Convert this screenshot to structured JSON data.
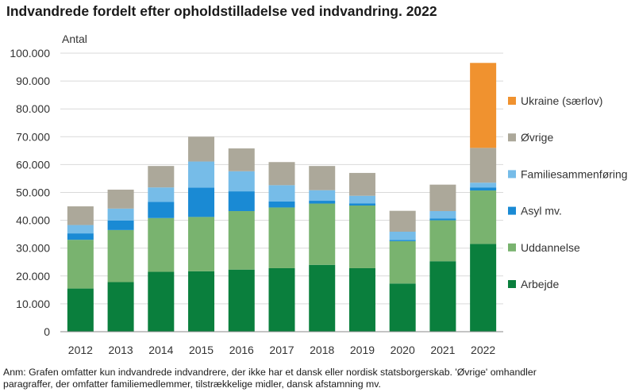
{
  "title": "Indvandrede fordelt efter opholdstilladelse ved indvandring. 2022",
  "note": {
    "line1": "Anm: Grafen omfatter kun indvandrede indvandrere, der ikke har et dansk eller nordisk statsborgerskab. 'Øvrige' omhandler",
    "line2": "paragraffer, der omfatter familiemedlemmer, tilstrækkelige midler, dansk afstamning mv."
  },
  "chart_data": {
    "type": "bar",
    "stacked": true,
    "title": "Indvandrede fordelt efter opholdstilladelse ved indvandring. 2022",
    "xlabel": "",
    "ylabel": "Antal",
    "ylim": [
      0,
      100000
    ],
    "ytick_labels": [
      "0",
      "10.000",
      "20.000",
      "30.000",
      "40.000",
      "50.000",
      "60.000",
      "70.000",
      "80.000",
      "90.000",
      "100.000"
    ],
    "grid": true,
    "legend_position": "right",
    "categories": [
      "2012",
      "2013",
      "2014",
      "2015",
      "2016",
      "2017",
      "2018",
      "2019",
      "2020",
      "2021",
      "2022"
    ],
    "series": [
      {
        "name": "Arbejde",
        "color": "#0a7f3d",
        "values": [
          15500,
          17800,
          21500,
          21700,
          22300,
          22800,
          24000,
          22800,
          17300,
          25300,
          31500
        ]
      },
      {
        "name": "Uddannelse",
        "color": "#79b36f",
        "values": [
          17500,
          18700,
          19300,
          19500,
          21000,
          21800,
          22000,
          22500,
          15200,
          14700,
          19200
        ]
      },
      {
        "name": "Asyl mv.",
        "color": "#1a8ad4",
        "values": [
          2300,
          3400,
          5800,
          10500,
          7100,
          2200,
          1000,
          800,
          400,
          600,
          1100
        ]
      },
      {
        "name": "Familiesammenføring",
        "color": "#76bce8",
        "values": [
          3000,
          4300,
          5200,
          9400,
          7200,
          5800,
          3800,
          2700,
          3000,
          2700,
          1700
        ]
      },
      {
        "name": "Øvrige",
        "color": "#aca89a",
        "values": [
          6700,
          6800,
          7700,
          8900,
          8200,
          8300,
          8700,
          8200,
          7500,
          9500,
          12500
        ]
      },
      {
        "name": "Ukraine (særlov)",
        "color": "#f0922f",
        "values": [
          0,
          0,
          0,
          0,
          0,
          0,
          0,
          0,
          0,
          0,
          30500
        ]
      }
    ]
  }
}
